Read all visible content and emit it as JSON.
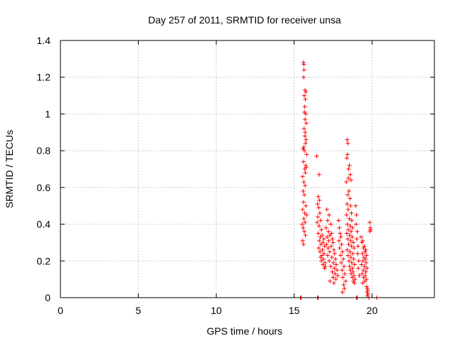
{
  "chart_data": {
    "type": "scatter",
    "title": "Day 257 of 2011, SRMTID for receiver unsa",
    "xlabel": "GPS time / hours",
    "ylabel": "SRMTID / TECUs",
    "xlim": [
      0,
      24
    ],
    "ylim": [
      0,
      1.4
    ],
    "xticks": [
      "0",
      "5",
      "10",
      "15",
      "20"
    ],
    "yticks": [
      "0",
      "0.2",
      "0.4",
      "0.6",
      "0.8",
      "1",
      "1.2",
      "1.4"
    ],
    "xtick_values": [
      0,
      5,
      10,
      15,
      20
    ],
    "ytick_values": [
      0,
      0.2,
      0.4,
      0.6,
      0.8,
      1.0,
      1.2,
      1.4
    ],
    "grid": true,
    "marker": "plus",
    "colors": {
      "series": "#ff0000",
      "grid": "#a0a0a0",
      "axes": "#000000"
    },
    "series": [
      {
        "points": [
          [
            15.4,
            0.0
          ],
          [
            15.45,
            0.0
          ],
          [
            16.5,
            0.0
          ],
          [
            16.55,
            0.0
          ],
          [
            19.0,
            0.0
          ],
          [
            19.05,
            0.0
          ],
          [
            19.8,
            0.0
          ],
          [
            20.3,
            0.0
          ],
          [
            15.6,
            1.28
          ],
          [
            15.62,
            1.27
          ],
          [
            15.63,
            1.24
          ],
          [
            15.61,
            1.2
          ],
          [
            15.7,
            1.13
          ],
          [
            15.75,
            1.12
          ],
          [
            15.65,
            1.1
          ],
          [
            15.72,
            1.08
          ],
          [
            15.68,
            1.04
          ],
          [
            15.66,
            1.01
          ],
          [
            15.74,
            1.0
          ],
          [
            15.7,
            0.97
          ],
          [
            15.78,
            0.95
          ],
          [
            15.64,
            0.92
          ],
          [
            15.71,
            0.9
          ],
          [
            15.69,
            0.88
          ],
          [
            15.76,
            0.86
          ],
          [
            15.73,
            0.84
          ],
          [
            15.62,
            0.82
          ],
          [
            15.58,
            0.81
          ],
          [
            15.66,
            0.8
          ],
          [
            15.8,
            0.78
          ],
          [
            15.6,
            0.74
          ],
          [
            15.75,
            0.72
          ],
          [
            15.77,
            0.71
          ],
          [
            15.68,
            0.7
          ],
          [
            15.72,
            0.68
          ],
          [
            15.55,
            0.66
          ],
          [
            15.62,
            0.63
          ],
          [
            15.7,
            0.61
          ],
          [
            15.58,
            0.58
          ],
          [
            15.65,
            0.56
          ],
          [
            15.6,
            0.52
          ],
          [
            15.75,
            0.5
          ],
          [
            15.55,
            0.48
          ],
          [
            15.68,
            0.46
          ],
          [
            15.8,
            0.45
          ],
          [
            15.62,
            0.43
          ],
          [
            15.7,
            0.41
          ],
          [
            15.52,
            0.4
          ],
          [
            15.58,
            0.38
          ],
          [
            15.65,
            0.36
          ],
          [
            15.72,
            0.34
          ],
          [
            15.55,
            0.31
          ],
          [
            15.6,
            0.29
          ],
          [
            16.45,
            0.77
          ],
          [
            16.6,
            0.67
          ],
          [
            16.55,
            0.55
          ],
          [
            16.62,
            0.53
          ],
          [
            16.5,
            0.51
          ],
          [
            16.58,
            0.49
          ],
          [
            16.65,
            0.46
          ],
          [
            16.52,
            0.44
          ],
          [
            16.7,
            0.42
          ],
          [
            16.48,
            0.41
          ],
          [
            16.6,
            0.39
          ],
          [
            16.75,
            0.37
          ],
          [
            16.55,
            0.35
          ],
          [
            16.8,
            0.34
          ],
          [
            16.68,
            0.33
          ],
          [
            16.9,
            0.32
          ],
          [
            16.62,
            0.31
          ],
          [
            16.85,
            0.3
          ],
          [
            16.72,
            0.29
          ],
          [
            16.95,
            0.28
          ],
          [
            16.58,
            0.27
          ],
          [
            16.82,
            0.26
          ],
          [
            16.66,
            0.25
          ],
          [
            16.92,
            0.24
          ],
          [
            16.78,
            0.23
          ],
          [
            16.7,
            0.22
          ],
          [
            16.88,
            0.21
          ],
          [
            16.75,
            0.2
          ],
          [
            16.98,
            0.19
          ],
          [
            16.85,
            0.18
          ],
          [
            17.0,
            0.17
          ],
          [
            16.95,
            0.16
          ],
          [
            17.1,
            0.48
          ],
          [
            17.25,
            0.45
          ],
          [
            17.15,
            0.42
          ],
          [
            17.35,
            0.4
          ],
          [
            17.05,
            0.38
          ],
          [
            17.2,
            0.36
          ],
          [
            17.4,
            0.35
          ],
          [
            17.3,
            0.34
          ],
          [
            17.12,
            0.33
          ],
          [
            17.45,
            0.32
          ],
          [
            17.22,
            0.31
          ],
          [
            17.5,
            0.3
          ],
          [
            17.08,
            0.29
          ],
          [
            17.38,
            0.28
          ],
          [
            17.18,
            0.27
          ],
          [
            17.55,
            0.26
          ],
          [
            17.28,
            0.25
          ],
          [
            17.6,
            0.24
          ],
          [
            17.15,
            0.23
          ],
          [
            17.42,
            0.22
          ],
          [
            17.65,
            0.21
          ],
          [
            17.25,
            0.2
          ],
          [
            17.52,
            0.19
          ],
          [
            17.7,
            0.18
          ],
          [
            17.35,
            0.17
          ],
          [
            17.58,
            0.16
          ],
          [
            17.75,
            0.15
          ],
          [
            17.45,
            0.14
          ],
          [
            17.62,
            0.13
          ],
          [
            17.8,
            0.12
          ],
          [
            17.5,
            0.11
          ],
          [
            17.68,
            0.1
          ],
          [
            17.3,
            0.09
          ],
          [
            17.55,
            0.08
          ],
          [
            17.85,
            0.42
          ],
          [
            17.9,
            0.38
          ],
          [
            17.95,
            0.35
          ],
          [
            18.0,
            0.33
          ],
          [
            17.88,
            0.31
          ],
          [
            18.05,
            0.29
          ],
          [
            17.92,
            0.27
          ],
          [
            18.1,
            0.25
          ],
          [
            17.98,
            0.23
          ],
          [
            18.15,
            0.21
          ],
          [
            18.02,
            0.19
          ],
          [
            18.2,
            0.17
          ],
          [
            18.08,
            0.15
          ],
          [
            18.25,
            0.13
          ],
          [
            18.12,
            0.11
          ],
          [
            18.3,
            0.09
          ],
          [
            18.18,
            0.07
          ],
          [
            18.22,
            0.05
          ],
          [
            18.1,
            0.03
          ],
          [
            18.4,
            0.86
          ],
          [
            18.45,
            0.84
          ],
          [
            18.42,
            0.78
          ],
          [
            18.38,
            0.76
          ],
          [
            18.55,
            0.72
          ],
          [
            18.5,
            0.7
          ],
          [
            18.6,
            0.67
          ],
          [
            18.48,
            0.65
          ],
          [
            18.65,
            0.64
          ],
          [
            18.35,
            0.63
          ],
          [
            18.52,
            0.58
          ],
          [
            18.44,
            0.56
          ],
          [
            18.58,
            0.54
          ],
          [
            18.4,
            0.51
          ],
          [
            18.62,
            0.5
          ],
          [
            18.46,
            0.48
          ],
          [
            18.68,
            0.46
          ],
          [
            18.36,
            0.45
          ],
          [
            18.54,
            0.43
          ],
          [
            18.7,
            0.42
          ],
          [
            18.42,
            0.4
          ],
          [
            18.6,
            0.39
          ],
          [
            18.75,
            0.38
          ],
          [
            18.48,
            0.37
          ],
          [
            18.66,
            0.36
          ],
          [
            18.38,
            0.35
          ],
          [
            18.56,
            0.34
          ],
          [
            18.72,
            0.33
          ],
          [
            18.44,
            0.32
          ],
          [
            18.62,
            0.31
          ],
          [
            18.8,
            0.3
          ],
          [
            18.5,
            0.29
          ],
          [
            18.68,
            0.28
          ],
          [
            18.85,
            0.27
          ],
          [
            18.4,
            0.26
          ],
          [
            18.58,
            0.25
          ],
          [
            18.76,
            0.24
          ],
          [
            18.46,
            0.23
          ],
          [
            18.64,
            0.22
          ],
          [
            18.82,
            0.21
          ],
          [
            18.52,
            0.2
          ],
          [
            18.7,
            0.19
          ],
          [
            18.88,
            0.18
          ],
          [
            18.56,
            0.17
          ],
          [
            18.74,
            0.16
          ],
          [
            18.6,
            0.15
          ],
          [
            18.78,
            0.14
          ],
          [
            18.66,
            0.13
          ],
          [
            18.84,
            0.12
          ],
          [
            18.72,
            0.11
          ],
          [
            18.9,
            0.1
          ],
          [
            18.8,
            0.09
          ],
          [
            18.86,
            0.08
          ],
          [
            18.95,
            0.5
          ],
          [
            19.0,
            0.45
          ],
          [
            18.98,
            0.4
          ],
          [
            19.05,
            0.36
          ],
          [
            19.02,
            0.32
          ],
          [
            19.1,
            0.28
          ],
          [
            19.08,
            0.24
          ],
          [
            19.15,
            0.2
          ],
          [
            19.12,
            0.16
          ],
          [
            19.18,
            0.12
          ],
          [
            19.3,
            0.33
          ],
          [
            19.4,
            0.31
          ],
          [
            19.35,
            0.3
          ],
          [
            19.5,
            0.28
          ],
          [
            19.45,
            0.27
          ],
          [
            19.6,
            0.26
          ],
          [
            19.55,
            0.25
          ],
          [
            19.38,
            0.24
          ],
          [
            19.65,
            0.23
          ],
          [
            19.48,
            0.22
          ],
          [
            19.58,
            0.21
          ],
          [
            19.42,
            0.2
          ],
          [
            19.62,
            0.19
          ],
          [
            19.32,
            0.18
          ],
          [
            19.52,
            0.17
          ],
          [
            19.68,
            0.16
          ],
          [
            19.44,
            0.15
          ],
          [
            19.6,
            0.14
          ],
          [
            19.36,
            0.13
          ],
          [
            19.56,
            0.12
          ],
          [
            19.46,
            0.11
          ],
          [
            19.64,
            0.1
          ],
          [
            19.54,
            0.09
          ],
          [
            19.4,
            0.08
          ],
          [
            19.66,
            0.06
          ],
          [
            19.7,
            0.05
          ],
          [
            19.72,
            0.04
          ],
          [
            19.68,
            0.03
          ],
          [
            19.74,
            0.02
          ],
          [
            19.7,
            0.01
          ],
          [
            19.85,
            0.41
          ],
          [
            19.88,
            0.38
          ],
          [
            19.9,
            0.37
          ],
          [
            19.86,
            0.36
          ]
        ]
      }
    ]
  }
}
